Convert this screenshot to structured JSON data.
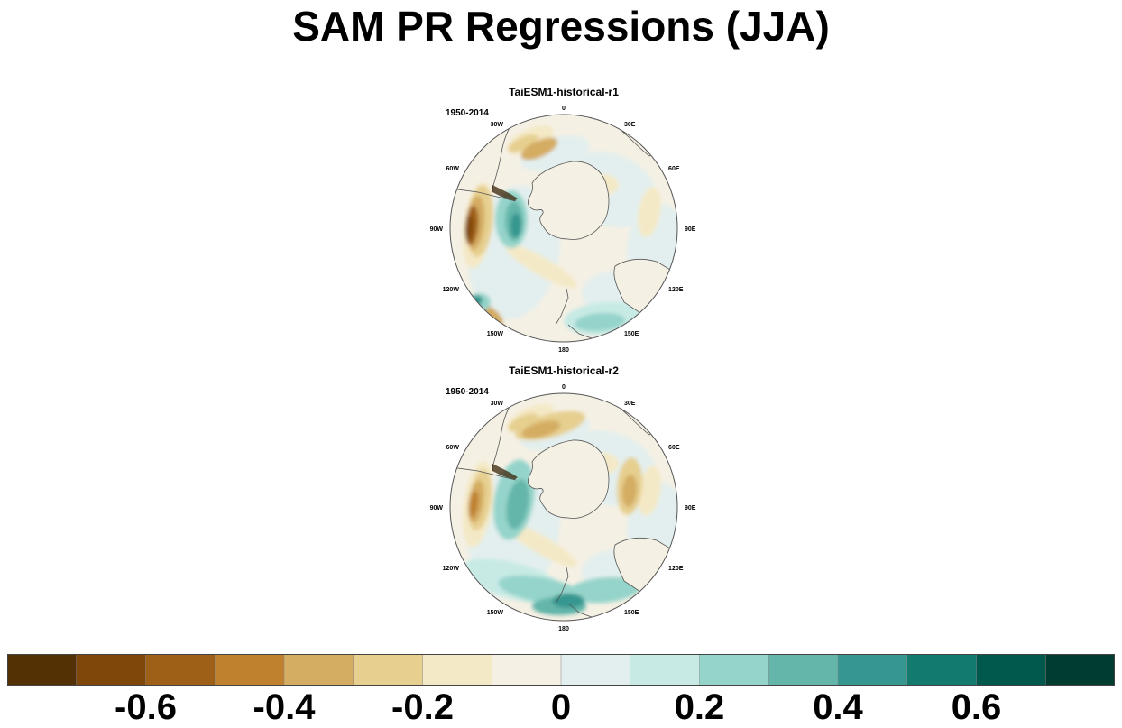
{
  "title": "SAM PR Regressions (JJA)",
  "panels": [
    {
      "name": "TaiESM1-historical-r1",
      "period": "1950-2014"
    },
    {
      "name": "TaiESM1-historical-r2",
      "period": "1950-2014"
    }
  ],
  "longitude_labels": [
    "0",
    "30E",
    "60E",
    "90E",
    "120E",
    "150E",
    "180",
    "150W",
    "120W",
    "90W",
    "60W",
    "30W"
  ],
  "colorbar": {
    "colors": [
      "#543005",
      "#7f470a",
      "#9e5f17",
      "#bf812d",
      "#d4ac62",
      "#e6cf8f",
      "#f4e9c6",
      "#f5f0e4",
      "#e3efee",
      "#c7eae5",
      "#95d4ca",
      "#65b6aa",
      "#35978f",
      "#137a70",
      "#01594e",
      "#003c30"
    ],
    "tick_labels": [
      "-0.6",
      "-0.4",
      "-0.2",
      "0",
      "0.2",
      "0.4",
      "0.6"
    ],
    "tick_values": [
      -0.6,
      -0.4,
      -0.2,
      0,
      0.2,
      0.4,
      0.6
    ],
    "min": -0.8,
    "max": 0.8
  },
  "colors": {
    "land": "#f5f0e4",
    "coastline": "#555555"
  }
}
